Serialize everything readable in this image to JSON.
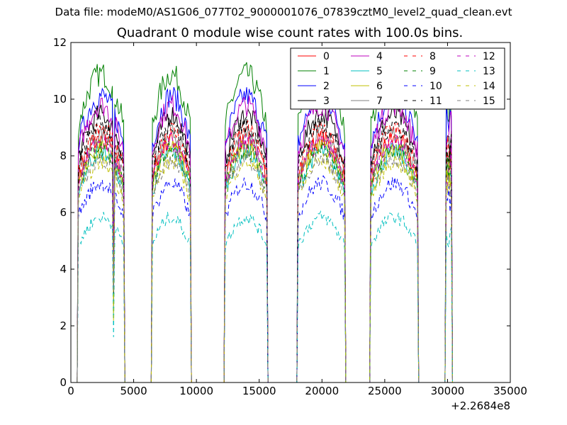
{
  "page": {
    "supertitle": "Data file: modeM0/AS1G06_077T02_9000001076_07839cztM0_level2_quad_clean.evt"
  },
  "chart_data": {
    "type": "line",
    "title": "Quadrant 0 module wise count rates with 100.0s bins.",
    "xlabel": "",
    "ylabel": "",
    "xlim": [
      0,
      35000
    ],
    "ylim": [
      0,
      12
    ],
    "xticks": [
      "0",
      "5000",
      "10000",
      "15000",
      "20000",
      "25000",
      "30000",
      "35000"
    ],
    "yticks": [
      "0",
      "2",
      "4",
      "6",
      "8",
      "10",
      "12"
    ],
    "x_offset_label": "+2.2684e8",
    "grid": false,
    "legend": {
      "placement": "top-right",
      "columns": 4
    },
    "segments": [
      [
        600,
        4200
      ],
      [
        6500,
        9500
      ],
      [
        12300,
        15600
      ],
      [
        18100,
        21800
      ],
      [
        23900,
        27600
      ],
      [
        29900,
        30300
      ]
    ],
    "dropouts": [
      3400,
      9900
    ],
    "series": [
      {
        "name": "0",
        "color": "#ff0000",
        "style": "solid",
        "level": 7.8
      },
      {
        "name": "1",
        "color": "#008000",
        "style": "solid",
        "level": 9.9
      },
      {
        "name": "2",
        "color": "#0000ff",
        "style": "solid",
        "level": 9.2
      },
      {
        "name": "3",
        "color": "#000000",
        "style": "solid",
        "level": 8.6
      },
      {
        "name": "4",
        "color": "#bf00bf",
        "style": "solid",
        "level": 8.9
      },
      {
        "name": "5",
        "color": "#00bfbf",
        "style": "solid",
        "level": 7.4
      },
      {
        "name": "6",
        "color": "#bfbf00",
        "style": "solid",
        "level": 7.6
      },
      {
        "name": "7",
        "color": "#808080",
        "style": "solid",
        "level": 8.0
      },
      {
        "name": "8",
        "color": "#ff0000",
        "style": "dashed",
        "level": 8.1
      },
      {
        "name": "9",
        "color": "#008000",
        "style": "dashed",
        "level": 7.5
      },
      {
        "name": "10",
        "color": "#0000ff",
        "style": "dashed",
        "level": 6.4
      },
      {
        "name": "11",
        "color": "#000000",
        "style": "dashed",
        "level": 8.3
      },
      {
        "name": "12",
        "color": "#bf00bf",
        "style": "dashed",
        "level": 7.7
      },
      {
        "name": "13",
        "color": "#00bfbf",
        "style": "dashed",
        "level": 5.3
      },
      {
        "name": "14",
        "color": "#bfbf00",
        "style": "dashed",
        "level": 7.1
      },
      {
        "name": "15",
        "color": "#808080",
        "style": "dashed",
        "level": 7.2
      }
    ]
  }
}
